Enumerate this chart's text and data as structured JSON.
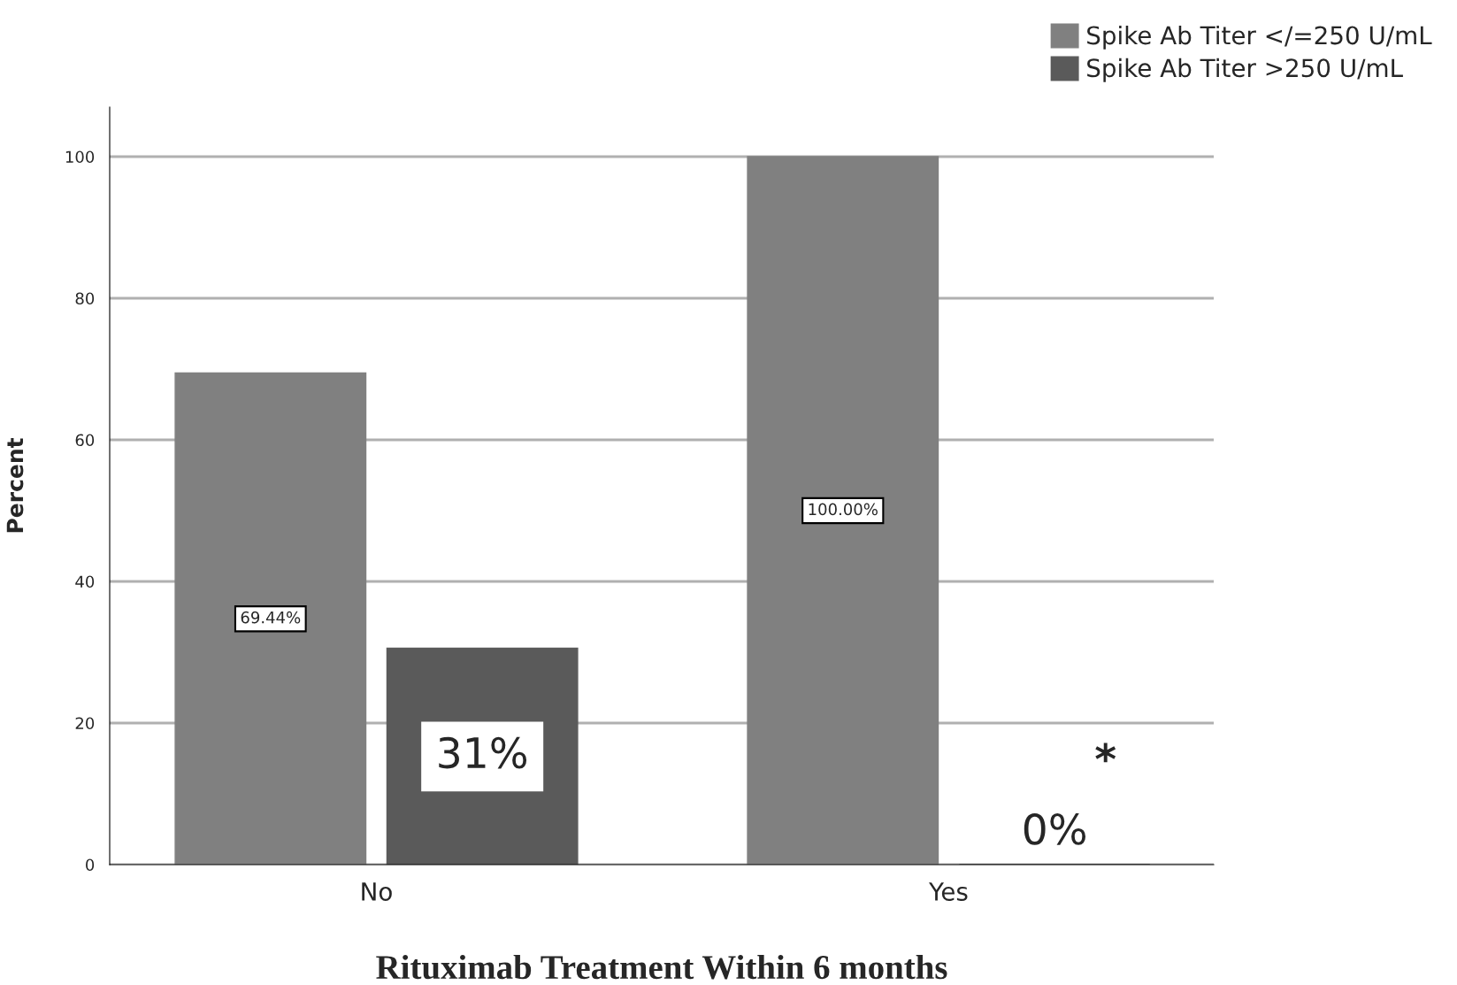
{
  "chart_data": {
    "type": "bar",
    "xlabel": "Rituximab Treatment Within 6 months",
    "ylabel": "Percent",
    "categories": [
      "No",
      "Yes"
    ],
    "series": [
      {
        "name": "Spike Ab Titer </=250 U/mL",
        "color": "#808080",
        "values": [
          69.44,
          100
        ],
        "value_labels": [
          "69.44%",
          "100.00%"
        ]
      },
      {
        "name": "Spike Ab Titer >250 U/mL",
        "color": "#5a5a5a",
        "values": [
          30.56,
          0
        ],
        "value_labels": [
          "31%",
          "0%"
        ]
      }
    ],
    "ylim": [
      0,
      107
    ],
    "yticks": [
      0,
      20,
      40,
      60,
      80,
      100
    ],
    "grid": "y",
    "legend": "top right",
    "annotations": [
      "*"
    ]
  }
}
